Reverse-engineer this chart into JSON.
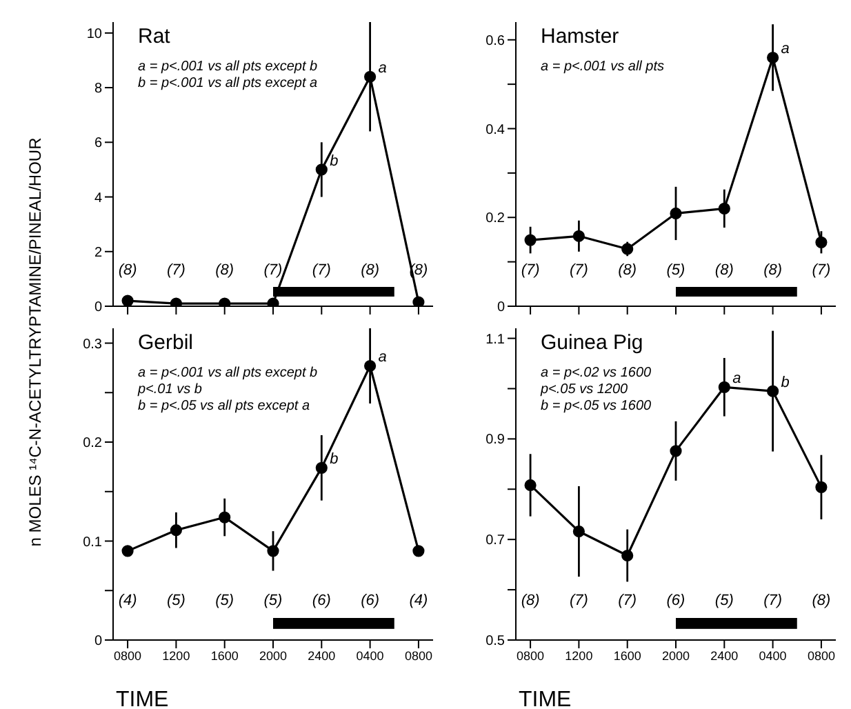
{
  "chart_data": [
    {
      "type": "line",
      "title": "Rat",
      "ylabel": "n MOLES ¹⁴C-N-ACETYLTRYPTAMINE/PINEAL/HOUR",
      "categories": [
        "0800",
        "1200",
        "1600",
        "2000",
        "2400",
        "0400",
        "0800"
      ],
      "series": [
        {
          "color": "#000000",
          "values": [
            0.2,
            0.1,
            0.1,
            0.1,
            5.0,
            8.4,
            0.15
          ],
          "errors": [
            null,
            null,
            null,
            null,
            1,
            2,
            null
          ]
        }
      ],
      "ylim": [
        0,
        10.4
      ],
      "yticks": [
        0,
        2,
        4,
        6,
        8,
        10
      ],
      "tick_labels": "y",
      "marker": "circle",
      "line_style": "solid",
      "annotations": [
        "a = p<.001 vs all pts except b",
        "b = p<.001 vs all pts except a",
        {
          "text": "a",
          "x": "0400",
          "y": 8.4
        },
        {
          "text": "b",
          "x": "2400",
          "y": 5.0
        },
        "(8)",
        "(7)",
        "(8)",
        "(7)",
        "(7)",
        "(8)",
        "(8)"
      ]
    },
    {
      "type": "line",
      "title": "Hamster",
      "categories": [
        "0800",
        "1200",
        "1600",
        "2000",
        "2400",
        "0400",
        "0800"
      ],
      "series": [
        {
          "color": "#000000",
          "values": [
            0.149,
            0.158,
            0.129,
            0.209,
            0.22,
            0.56,
            0.144
          ],
          "errors": [
            0.03,
            0.035,
            0.016,
            0.06,
            0.043,
            0.075,
            0.025
          ]
        }
      ],
      "ylim": [
        0,
        0.64
      ],
      "yticks": [
        0,
        {
          "value": 0.1,
          "label": null
        },
        0.2,
        {
          "value": 0.3,
          "label": null
        },
        0.4,
        {
          "value": 0.5,
          "label": null
        },
        0.6
      ],
      "tick_labels": "y",
      "marker": "circle",
      "line_style": "solid",
      "annotations": [
        "a = p<.001 vs all pts",
        {
          "text": "a",
          "x": "0400",
          "y": 0.56
        },
        "(7)",
        "(7)",
        "(8)",
        "(5)",
        "(8)",
        "(8)",
        "(7)"
      ]
    },
    {
      "type": "line",
      "title": "Gerbil",
      "xlabel": "TIME",
      "categories": [
        "0800",
        "1200",
        "1600",
        "2000",
        "2400",
        "0400",
        "0800"
      ],
      "series": [
        {
          "color": "#000000",
          "values": [
            0.09,
            0.111,
            0.124,
            0.09,
            0.174,
            0.277,
            0.09
          ],
          "errors": [
            0.004,
            0.018,
            0.019,
            0.02,
            0.033,
            0.038,
            0.005
          ]
        }
      ],
      "ylim": [
        0,
        0.315
      ],
      "yticks": [
        0,
        {
          "value": 0.05,
          "label": null
        },
        0.1,
        {
          "value": 0.15,
          "label": null
        },
        0.2,
        {
          "value": 0.25,
          "label": null
        },
        0.3
      ],
      "marker": "circle",
      "line_style": "solid",
      "annotations": [
        "a = p<.001 vs all pts except b",
        "p<.01 vs b",
        "b = p<.05 vs all pts except a",
        {
          "text": "a",
          "x": "0400",
          "y": 0.277
        },
        {
          "text": "b",
          "x": "2400",
          "y": 0.174
        },
        "(4)",
        "(5)",
        "(5)",
        "(5)",
        "(6)",
        "(6)",
        "(4)"
      ]
    },
    {
      "type": "line",
      "title": "Guinea Pig",
      "xlabel": "TIME",
      "categories": [
        "0800",
        "1200",
        "1600",
        "2000",
        "2400",
        "0400",
        "0800"
      ],
      "series": [
        {
          "color": "#000000",
          "values": [
            0.808,
            0.716,
            0.668,
            0.876,
            1.003,
            0.995,
            0.804
          ],
          "errors": [
            0.062,
            0.09,
            0.052,
            0.059,
            0.058,
            0.12,
            0.064
          ]
        }
      ],
      "ylim": [
        0.5,
        1.12
      ],
      "yticks": [
        0.5,
        {
          "value": 0.6,
          "label": null
        },
        0.7,
        {
          "value": 0.8,
          "label": null
        },
        0.9,
        {
          "value": 1.0,
          "label": null
        },
        1.1
      ],
      "marker": "circle",
      "line_style": "solid",
      "annotations": [
        "a = p<.02 vs 1600",
        "p<.05 vs 1200",
        "b = p<.05 vs 1600",
        {
          "text": "a",
          "x": "2400",
          "y": 1.003
        },
        {
          "text": "b",
          "x": "0400",
          "y": 0.995
        },
        "(8)",
        "(7)",
        "(7)",
        "(6)",
        "(5)",
        "(7)",
        "(8)"
      ]
    }
  ]
}
